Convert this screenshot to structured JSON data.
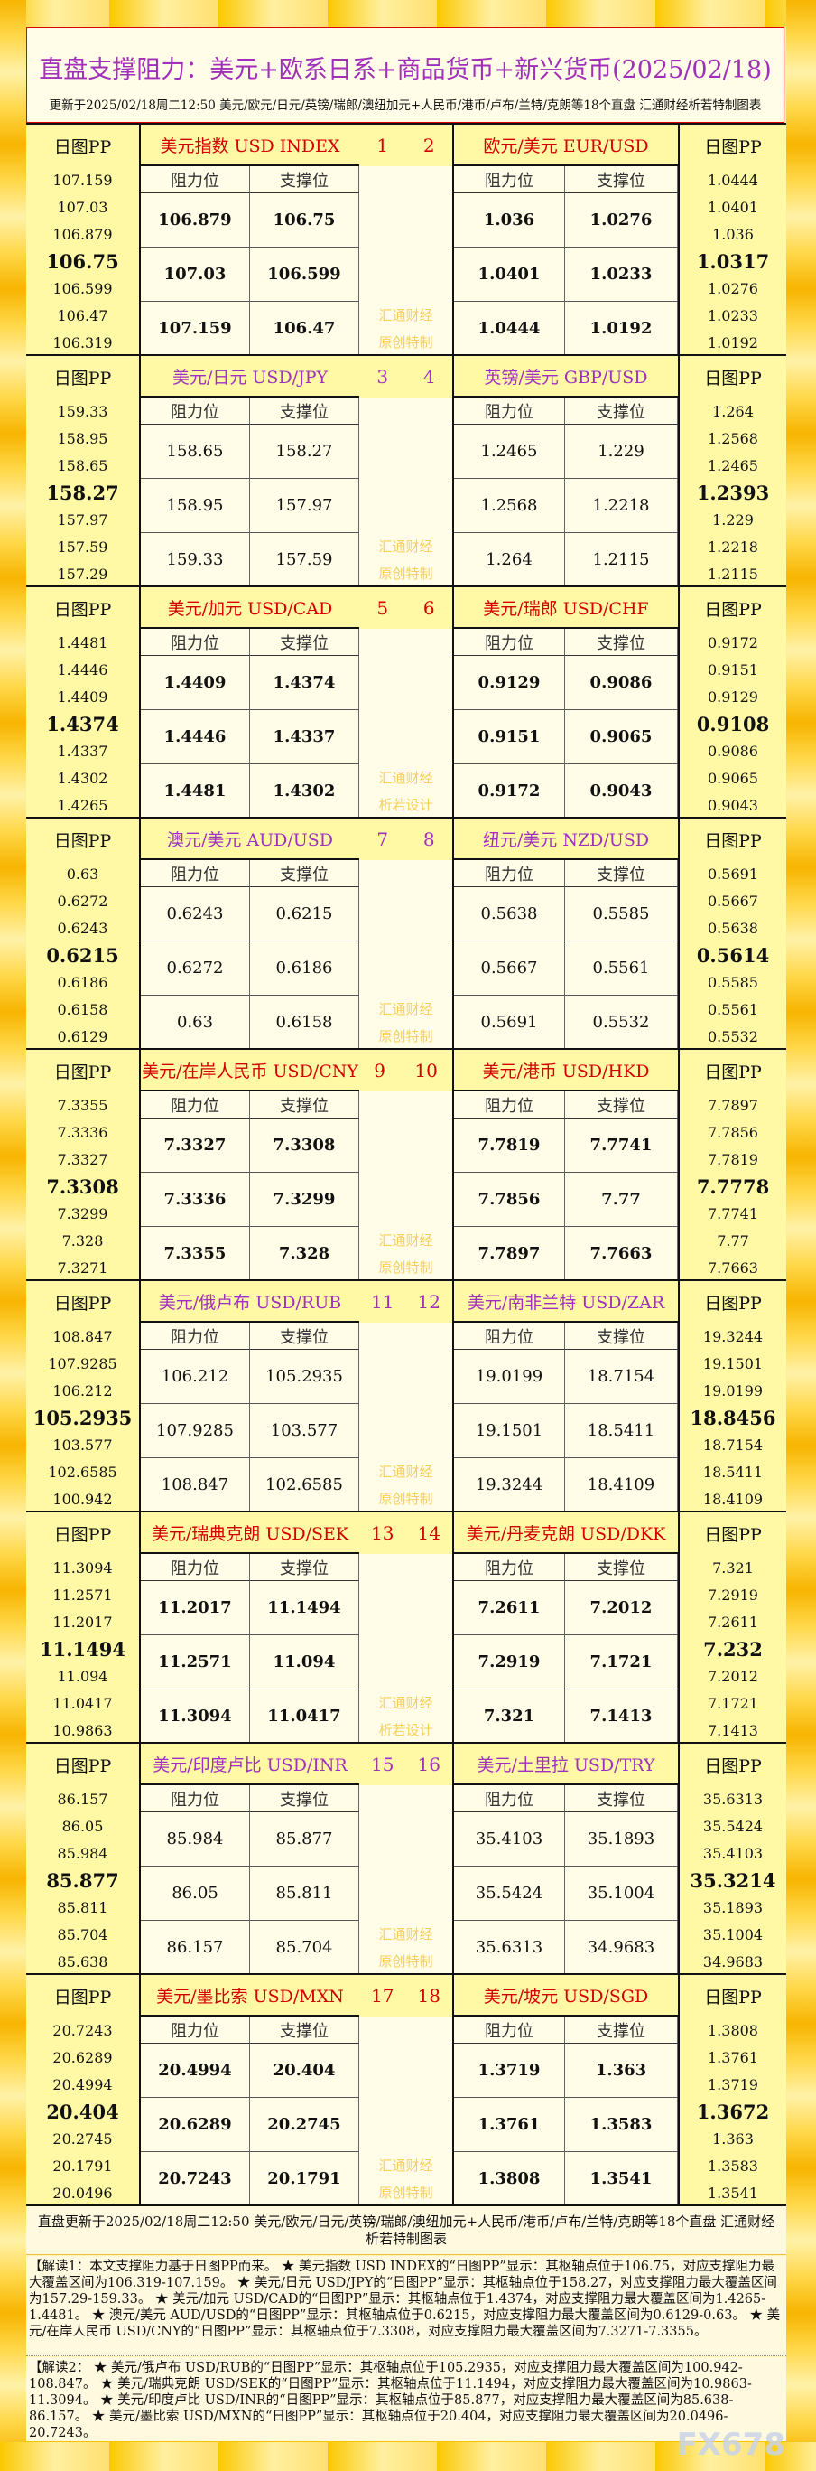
{
  "header": {
    "title": "直盘支撑阻力：美元+欧系日系+商品货币+新兴货币(2025/02/18)",
    "subtitle": "更新于2025/02/18周二12:50 美元/欧元/日元/英镑/瑞郎/澳纽加元+人民币/港币/卢布/兰特/克朗等18个直盘 汇通财经析若特制图表"
  },
  "labels": {
    "pp": "日图PP",
    "resistance": "阻力位",
    "support": "支撑位",
    "brand": "汇通财经"
  },
  "colors": {
    "red_header": "#d40000",
    "purple_header": "#a030c0",
    "title": "#a030b8",
    "watermark": "#f7cf5c"
  },
  "blocks": [
    {
      "style": "red",
      "nums": [
        "1",
        "2"
      ],
      "mark": "原创特制",
      "left": {
        "name": "美元指数 USD INDEX",
        "pp": [
          "107.159",
          "107.03",
          "106.879",
          "106.75",
          "106.599",
          "106.47",
          "106.319"
        ],
        "rows": [
          [
            "106.879",
            "106.75"
          ],
          [
            "107.03",
            "106.599"
          ],
          [
            "107.159",
            "106.47"
          ]
        ]
      },
      "right": {
        "name": "欧元/美元 EUR/USD",
        "pp": [
          "1.0444",
          "1.0401",
          "1.036",
          "1.0317",
          "1.0276",
          "1.0233",
          "1.0192"
        ],
        "rows": [
          [
            "1.036",
            "1.0276"
          ],
          [
            "1.0401",
            "1.0233"
          ],
          [
            "1.0444",
            "1.0192"
          ]
        ]
      }
    },
    {
      "style": "purple",
      "nums": [
        "3",
        "4"
      ],
      "mark": "原创特制",
      "left": {
        "name": "美元/日元 USD/JPY",
        "pp": [
          "159.33",
          "158.95",
          "158.65",
          "158.27",
          "157.97",
          "157.59",
          "157.29"
        ],
        "rows": [
          [
            "158.65",
            "158.27"
          ],
          [
            "158.95",
            "157.97"
          ],
          [
            "159.33",
            "157.59"
          ]
        ]
      },
      "right": {
        "name": "英镑/美元 GBP/USD",
        "pp": [
          "1.264",
          "1.2568",
          "1.2465",
          "1.2393",
          "1.229",
          "1.2218",
          "1.2115"
        ],
        "rows": [
          [
            "1.2465",
            "1.229"
          ],
          [
            "1.2568",
            "1.2218"
          ],
          [
            "1.264",
            "1.2115"
          ]
        ]
      }
    },
    {
      "style": "red",
      "nums": [
        "5",
        "6"
      ],
      "mark": "析若设计",
      "left": {
        "name": "美元/加元 USD/CAD",
        "pp": [
          "1.4481",
          "1.4446",
          "1.4409",
          "1.4374",
          "1.4337",
          "1.4302",
          "1.4265"
        ],
        "rows": [
          [
            "1.4409",
            "1.4374"
          ],
          [
            "1.4446",
            "1.4337"
          ],
          [
            "1.4481",
            "1.4302"
          ]
        ]
      },
      "right": {
        "name": "美元/瑞郎 USD/CHF",
        "pp": [
          "0.9172",
          "0.9151",
          "0.9129",
          "0.9108",
          "0.9086",
          "0.9065",
          "0.9043"
        ],
        "rows": [
          [
            "0.9129",
            "0.9086"
          ],
          [
            "0.9151",
            "0.9065"
          ],
          [
            "0.9172",
            "0.9043"
          ]
        ]
      }
    },
    {
      "style": "purple",
      "nums": [
        "7",
        "8"
      ],
      "mark": "原创特制",
      "left": {
        "name": "澳元/美元 AUD/USD",
        "pp": [
          "0.63",
          "0.6272",
          "0.6243",
          "0.6215",
          "0.6186",
          "0.6158",
          "0.6129"
        ],
        "rows": [
          [
            "0.6243",
            "0.6215"
          ],
          [
            "0.6272",
            "0.6186"
          ],
          [
            "0.63",
            "0.6158"
          ]
        ]
      },
      "right": {
        "name": "纽元/美元 NZD/USD",
        "pp": [
          "0.5691",
          "0.5667",
          "0.5638",
          "0.5614",
          "0.5585",
          "0.5561",
          "0.5532"
        ],
        "rows": [
          [
            "0.5638",
            "0.5585"
          ],
          [
            "0.5667",
            "0.5561"
          ],
          [
            "0.5691",
            "0.5532"
          ]
        ]
      }
    },
    {
      "style": "red",
      "nums": [
        "9",
        "10"
      ],
      "mark": "原创特制",
      "left": {
        "name": "美元/在岸人民币 USD/CNY",
        "pp": [
          "7.3355",
          "7.3336",
          "7.3327",
          "7.3308",
          "7.3299",
          "7.328",
          "7.3271"
        ],
        "rows": [
          [
            "7.3327",
            "7.3308"
          ],
          [
            "7.3336",
            "7.3299"
          ],
          [
            "7.3355",
            "7.328"
          ]
        ]
      },
      "right": {
        "name": "美元/港币 USD/HKD",
        "pp": [
          "7.7897",
          "7.7856",
          "7.7819",
          "7.7778",
          "7.7741",
          "7.77",
          "7.7663"
        ],
        "rows": [
          [
            "7.7819",
            "7.7741"
          ],
          [
            "7.7856",
            "7.77"
          ],
          [
            "7.7897",
            "7.7663"
          ]
        ]
      }
    },
    {
      "style": "purple",
      "nums": [
        "11",
        "12"
      ],
      "mark": "原创特制",
      "left": {
        "name": "美元/俄卢布 USD/RUB",
        "pp": [
          "108.847",
          "107.9285",
          "106.212",
          "105.2935",
          "103.577",
          "102.6585",
          "100.942"
        ],
        "rows": [
          [
            "106.212",
            "105.2935"
          ],
          [
            "107.9285",
            "103.577"
          ],
          [
            "108.847",
            "102.6585"
          ]
        ]
      },
      "right": {
        "name": "美元/南非兰特 USD/ZAR",
        "pp": [
          "19.3244",
          "19.1501",
          "19.0199",
          "18.8456",
          "18.7154",
          "18.5411",
          "18.4109"
        ],
        "rows": [
          [
            "19.0199",
            "18.7154"
          ],
          [
            "19.1501",
            "18.5411"
          ],
          [
            "19.3244",
            "18.4109"
          ]
        ]
      }
    },
    {
      "style": "red",
      "nums": [
        "13",
        "14"
      ],
      "mark": "析若设计",
      "left": {
        "name": "美元/瑞典克朗 USD/SEK",
        "pp": [
          "11.3094",
          "11.2571",
          "11.2017",
          "11.1494",
          "11.094",
          "11.0417",
          "10.9863"
        ],
        "rows": [
          [
            "11.2017",
            "11.1494"
          ],
          [
            "11.2571",
            "11.094"
          ],
          [
            "11.3094",
            "11.0417"
          ]
        ]
      },
      "right": {
        "name": "美元/丹麦克朗 USD/DKK",
        "pp": [
          "7.321",
          "7.2919",
          "7.2611",
          "7.232",
          "7.2012",
          "7.1721",
          "7.1413"
        ],
        "rows": [
          [
            "7.2611",
            "7.2012"
          ],
          [
            "7.2919",
            "7.1721"
          ],
          [
            "7.321",
            "7.1413"
          ]
        ]
      }
    },
    {
      "style": "purple",
      "nums": [
        "15",
        "16"
      ],
      "mark": "原创特制",
      "left": {
        "name": "美元/印度卢比 USD/INR",
        "pp": [
          "86.157",
          "86.05",
          "85.984",
          "85.877",
          "85.811",
          "85.704",
          "85.638"
        ],
        "rows": [
          [
            "85.984",
            "85.877"
          ],
          [
            "86.05",
            "85.811"
          ],
          [
            "86.157",
            "85.704"
          ]
        ]
      },
      "right": {
        "name": "美元/土里拉 USD/TRY",
        "pp": [
          "35.6313",
          "35.5424",
          "35.4103",
          "35.3214",
          "35.1893",
          "35.1004",
          "34.9683"
        ],
        "rows": [
          [
            "35.4103",
            "35.1893"
          ],
          [
            "35.5424",
            "35.1004"
          ],
          [
            "35.6313",
            "34.9683"
          ]
        ]
      }
    },
    {
      "style": "red",
      "nums": [
        "17",
        "18"
      ],
      "mark": "原创特制",
      "left": {
        "name": "美元/墨比索 USD/MXN",
        "pp": [
          "20.7243",
          "20.6289",
          "20.4994",
          "20.404",
          "20.2745",
          "20.1791",
          "20.0496"
        ],
        "rows": [
          [
            "20.4994",
            "20.404"
          ],
          [
            "20.6289",
            "20.2745"
          ],
          [
            "20.7243",
            "20.1791"
          ]
        ]
      },
      "right": {
        "name": "美元/坡元 USD/SGD",
        "pp": [
          "1.3808",
          "1.3761",
          "1.3719",
          "1.3672",
          "1.363",
          "1.3583",
          "1.3541"
        ],
        "rows": [
          [
            "1.3719",
            "1.363"
          ],
          [
            "1.3761",
            "1.3583"
          ],
          [
            "1.3808",
            "1.3541"
          ]
        ]
      }
    }
  ],
  "footer": {
    "update": "直盘更新于2025/02/18周二12:50 美元/欧元/日元/英镑/瑞郎/澳纽加元+人民币/港币/卢布/兰特/克朗等18个直盘 汇通财经析若特制图表",
    "note1": "【解读1：本文支撑阻力基于日图PP而来。 ★ 美元指数 USD INDEX的“日图PP”显示：其枢轴点位于106.75，对应支撑阻力最大覆盖区间为106.319-107.159。 ★ 美元/日元 USD/JPY的“日图PP”显示：其枢轴点位于158.27，对应支撑阻力最大覆盖区间为157.29-159.33。 ★ 美元/加元 USD/CAD的“日图PP”显示：其枢轴点位于1.4374，对应支撑阻力最大覆盖区间为1.4265-1.4481。 ★ 澳元/美元 AUD/USD的“日图PP”显示：其枢轴点位于0.6215，对应支撑阻力最大覆盖区间为0.6129-0.63。 ★ 美元/在岸人民币 USD/CNY的“日图PP”显示：其枢轴点位于7.3308，对应支撑阻力最大覆盖区间为7.3271-7.3355。",
    "note2": "【解读2： ★ 美元/俄卢布 USD/RUB的“日图PP”显示：其枢轴点位于105.2935，对应支撑阻力最大覆盖区间为100.942-108.847。 ★ 美元/瑞典克朗 USD/SEK的“日图PP”显示：其枢轴点位于11.1494，对应支撑阻力最大覆盖区间为10.9863-11.3094。 ★ 美元/印度卢比 USD/INR的“日图PP”显示：其枢轴点位于85.877，对应支撑阻力最大覆盖区间为85.638-86.157。 ★ 美元/墨比索 USD/MXN的“日图PP”显示：其枢轴点位于20.404，对应支撑阻力最大覆盖区间为20.0496-20.7243。",
    "watermark": "FX678"
  }
}
